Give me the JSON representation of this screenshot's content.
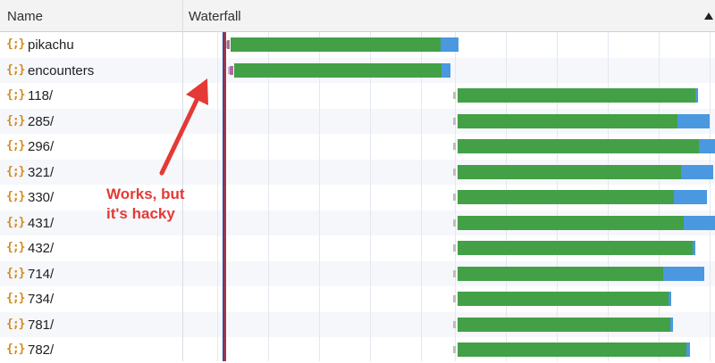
{
  "header": {
    "name_label": "Name",
    "waterfall_label": "Waterfall",
    "sort_icon": "sort-ascending-icon"
  },
  "colors": {
    "waiting": "#43a047",
    "download": "#4a98e0",
    "stalled": "#b06aa6",
    "queued": "#bdbdbd",
    "marker_blue": "#2f4fb0",
    "marker_red": "#c62828",
    "annotation": "#e53935"
  },
  "requests": [
    {
      "name": "pikachu",
      "icon": "json-icon"
    },
    {
      "name": "encounters",
      "icon": "json-icon"
    },
    {
      "name": "118/",
      "icon": "json-icon"
    },
    {
      "name": "285/",
      "icon": "json-icon"
    },
    {
      "name": "296/",
      "icon": "json-icon"
    },
    {
      "name": "321/",
      "icon": "json-icon"
    },
    {
      "name": "330/",
      "icon": "json-icon"
    },
    {
      "name": "431/",
      "icon": "json-icon"
    },
    {
      "name": "432/",
      "icon": "json-icon"
    },
    {
      "name": "714/",
      "icon": "json-icon"
    },
    {
      "name": "734/",
      "icon": "json-icon"
    },
    {
      "name": "781/",
      "icon": "json-icon"
    },
    {
      "name": "782/",
      "icon": "json-icon"
    }
  ],
  "annotation": {
    "text": "Works, but\nit's hacky"
  }
}
